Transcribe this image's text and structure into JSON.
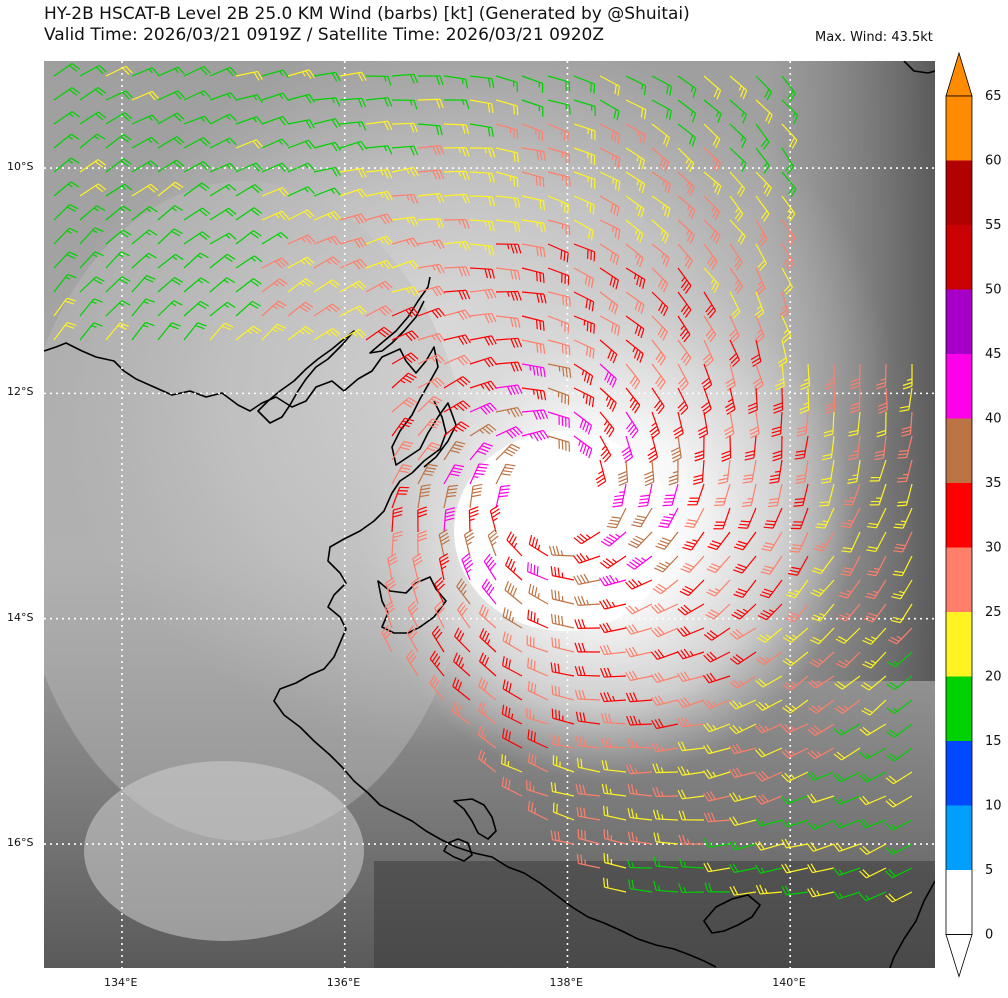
{
  "header": {
    "title_line1": "HY-2B HSCAT-B Level 2B 25.0 KM Wind (barbs) [kt] (Generated by @Shuitai)",
    "title_line2": "Valid Time: 2026/03/21 0919Z / Satellite Time: 2026/03/21 0920Z",
    "max_wind": "Max. Wind: 43.5kt"
  },
  "map": {
    "lon_range": [
      133.3,
      141.3
    ],
    "lat_range": [
      -17.1,
      -9.05
    ],
    "x_ticks": [
      "134°E",
      "136°E",
      "138°E",
      "140°E"
    ],
    "x_tick_values": [
      134,
      136,
      138,
      140
    ],
    "y_ticks": [
      "10°S",
      "12°S",
      "14°S",
      "16°S"
    ],
    "y_tick_values": [
      -10,
      -12,
      -14,
      -16
    ],
    "grid": true,
    "storm_center": {
      "lon": 137.9,
      "lat": -12.9
    },
    "background": "grayscale satellite infrared imagery",
    "coastline_color": "#000000"
  },
  "colorbar": {
    "ticks": [
      "0",
      "5",
      "10",
      "15",
      "20",
      "25",
      "30",
      "35",
      "40",
      "45",
      "50",
      "55",
      "60",
      "65"
    ],
    "bins": [
      {
        "from": 0,
        "to": 5,
        "color": "#ffffff"
      },
      {
        "from": 5,
        "to": 10,
        "color": "#009ffe"
      },
      {
        "from": 10,
        "to": 15,
        "color": "#0049ff"
      },
      {
        "from": 15,
        "to": 20,
        "color": "#00d100"
      },
      {
        "from": 20,
        "to": 25,
        "color": "#fff323"
      },
      {
        "from": 25,
        "to": 30,
        "color": "#ff7f6a"
      },
      {
        "from": 30,
        "to": 35,
        "color": "#ff0000"
      },
      {
        "from": 35,
        "to": 40,
        "color": "#bd7445"
      },
      {
        "from": 40,
        "to": 45,
        "color": "#ff00ea"
      },
      {
        "from": 45,
        "to": 50,
        "color": "#a600c8"
      },
      {
        "from": 50,
        "to": 55,
        "color": "#cb0000"
      },
      {
        "from": 55,
        "to": 60,
        "color": "#b30000"
      },
      {
        "from": 60,
        "to": 65,
        "color": "#ff8c00"
      }
    ],
    "extend": "both"
  }
}
